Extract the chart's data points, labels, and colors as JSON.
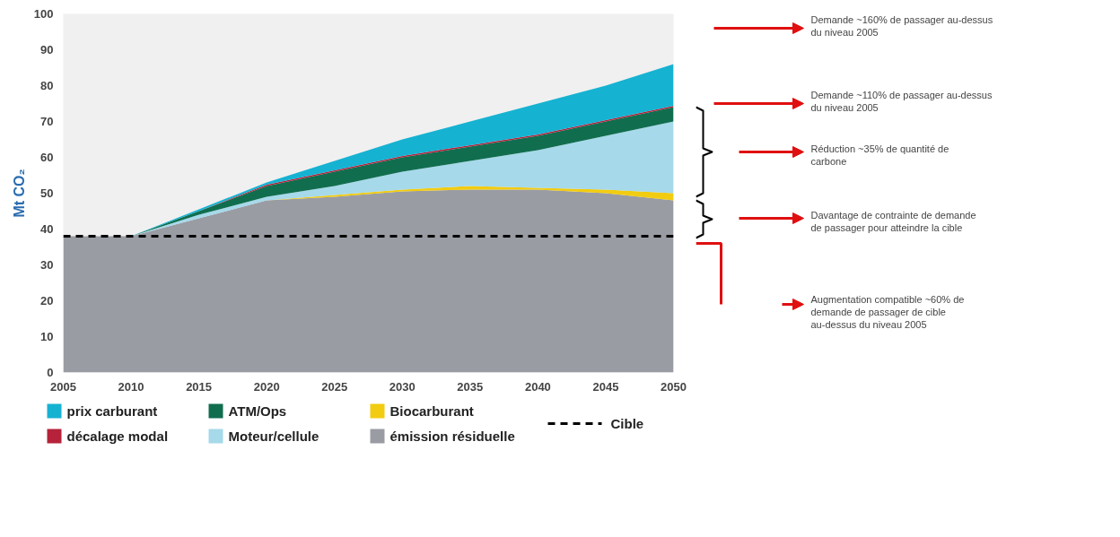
{
  "chart_data": {
    "type": "area",
    "stacked": true,
    "ylabel": "Mt CO₂",
    "x": [
      2005,
      2010,
      2015,
      2020,
      2025,
      2030,
      2035,
      2040,
      2045,
      2050
    ],
    "series": [
      {
        "name": "émission résiduelle",
        "color": "#9a9ca4",
        "values": [
          38,
          38,
          43,
          48,
          49,
          50.5,
          51,
          51,
          50,
          48
        ]
      },
      {
        "name": "Biocarburant",
        "color": "#f2cc10",
        "values": [
          0,
          0,
          0,
          0,
          0.5,
          0.5,
          1,
          0.5,
          1,
          2
        ]
      },
      {
        "name": "Moteur/cellule",
        "color": "#a6d9ea",
        "values": [
          0,
          0,
          1,
          1,
          2.5,
          5,
          7,
          10.5,
          15,
          20
        ]
      },
      {
        "name": "ATM/Ops",
        "color": "#106e4f",
        "values": [
          0,
          0,
          1,
          3,
          4,
          4,
          4,
          4,
          4,
          4
        ]
      },
      {
        "name": "décalage modal",
        "color": "#b5223a",
        "values": [
          0,
          0,
          0,
          0.4,
          0.4,
          0.4,
          0.4,
          0.4,
          0.4,
          0.4
        ]
      },
      {
        "name": "prix carburant",
        "color": "#16b2d2",
        "values": [
          0,
          0,
          0.5,
          0.6,
          2.6,
          4.6,
          6.6,
          8.6,
          9.6,
          11.6
        ]
      }
    ],
    "ref_lines": [
      {
        "axis": "y",
        "value": 38,
        "label": "Cible",
        "color": "#000000",
        "line_style": "dashed"
      }
    ],
    "annotations": [
      "Demande ~160% de passager au-dessus du niveau 2005",
      "Demande ~110% de passager au-dessus du niveau 2005",
      "Réduction ~35% de quantité de carbone",
      "Davantage de contrainte de demande de passager pour atteindre la cible",
      "Augmentation compatible ~60% de demande de passager de cible au-dessus du niveau 2005"
    ],
    "xlim": [
      2005,
      2050
    ],
    "ylim": [
      0,
      100
    ],
    "xticks": [
      2005,
      2010,
      2015,
      2020,
      2025,
      2030,
      2035,
      2040,
      2045,
      2050
    ],
    "yticks": [
      0,
      10,
      20,
      30,
      40,
      50,
      60,
      70,
      80,
      90,
      100
    ],
    "grid": false,
    "legend": "bottom"
  }
}
